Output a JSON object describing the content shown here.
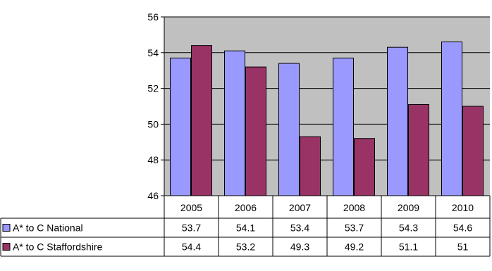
{
  "chart_data": {
    "type": "bar",
    "categories": [
      "2005",
      "2006",
      "2007",
      "2008",
      "2009",
      "2010"
    ],
    "series": [
      {
        "name": "A* to C National",
        "values": [
          53.7,
          54.1,
          53.4,
          53.7,
          54.3,
          54.6
        ],
        "color": "#9999ff"
      },
      {
        "name": "A* to C Staffordshire",
        "values": [
          54.4,
          53.2,
          49.3,
          49.2,
          51.1,
          51
        ],
        "color": "#993366"
      }
    ],
    "table_values": [
      [
        "53.7",
        "54.1",
        "53.4",
        "53.7",
        "54.3",
        "54.6"
      ],
      [
        "54.4",
        "53.2",
        "49.3",
        "49.2",
        "51.1",
        "51"
      ]
    ],
    "ylim": [
      46,
      56
    ],
    "yticks": [
      "46",
      "48",
      "50",
      "52",
      "54",
      "56"
    ],
    "grid": true,
    "plot_background": "#c0c0c0",
    "data_table": true,
    "title": "",
    "xlabel": "",
    "ylabel": ""
  }
}
